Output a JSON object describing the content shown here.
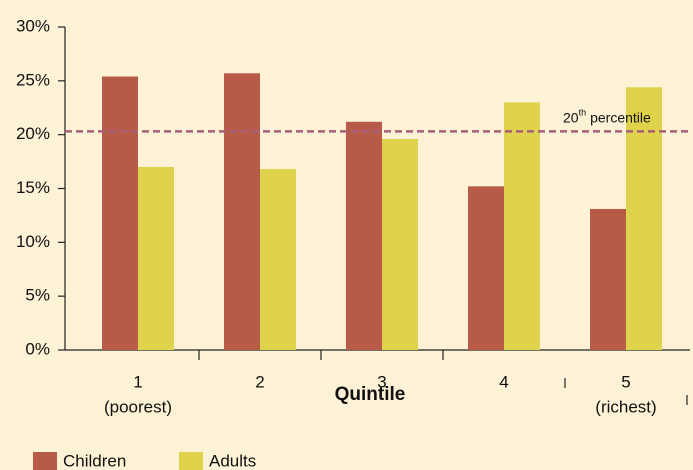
{
  "chart_data": {
    "type": "bar",
    "x_label": "Quintile",
    "categories": [
      [
        "1",
        "(poorest)"
      ],
      [
        "2"
      ],
      [
        "3"
      ],
      [
        "4"
      ],
      [
        "5",
        "(richest)"
      ]
    ],
    "series": [
      {
        "name": "Children",
        "color": "#b85a48",
        "values": [
          25.4,
          25.7,
          21.2,
          15.2,
          13.1
        ]
      },
      {
        "name": "Adults",
        "color": "#e0d34c",
        "values": [
          17.0,
          16.8,
          19.6,
          23.0,
          24.4
        ]
      }
    ],
    "ylim": [
      0,
      30
    ],
    "yticks": [
      {
        "value": 0,
        "label": "0%"
      },
      {
        "value": 5,
        "label": "5%"
      },
      {
        "value": 10,
        "label": "10%"
      },
      {
        "value": 15,
        "label": "15%"
      },
      {
        "value": 20,
        "label": "20%"
      },
      {
        "value": 25,
        "label": "25%"
      },
      {
        "value": 30,
        "label": "30%"
      }
    ],
    "reference_line": {
      "value": 20.3,
      "color": "#a8607a",
      "label": "20",
      "label_sup": "th",
      "label_rest": "percentile"
    }
  }
}
